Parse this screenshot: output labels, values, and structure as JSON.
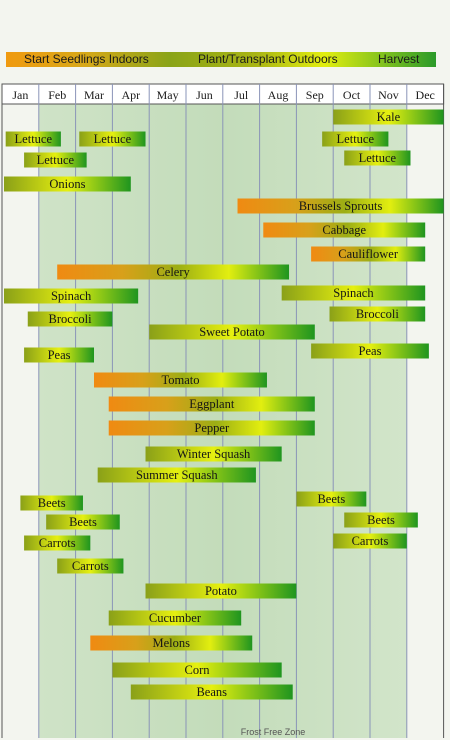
{
  "legend": {
    "start": "Start Seedlings Indoors",
    "plant": "Plant/Transplant Outdoors",
    "harvest": "Harvest"
  },
  "footer": "Frost Free Zone",
  "chart_data": {
    "type": "gantt",
    "months": [
      "Jan",
      "Feb",
      "Mar",
      "Apr",
      "May",
      "Jun",
      "Jul",
      "Aug",
      "Sep",
      "Oct",
      "Nov",
      "Dec"
    ],
    "frost_free_zone": [
      1,
      11
    ],
    "bars": [
      {
        "label": "Kale",
        "start": 9.0,
        "end": 12.0,
        "style": "plant-harvest"
      },
      {
        "label": "Lettuce",
        "start": 0.1,
        "end": 1.6,
        "style": "plant-harvest"
      },
      {
        "label": "Lettuce",
        "start": 2.1,
        "end": 3.9,
        "style": "plant-harvest"
      },
      {
        "label": "Lettuce",
        "start": 8.7,
        "end": 10.5,
        "style": "plant-harvest"
      },
      {
        "label": "Lettuce",
        "start": 0.6,
        "end": 2.3,
        "style": "plant-harvest"
      },
      {
        "label": "Lettuce",
        "start": 9.3,
        "end": 11.1,
        "style": "plant-harvest"
      },
      {
        "label": "Onions",
        "start": -0.2,
        "end": 3.5,
        "style": "plant-harvest"
      },
      {
        "label": "Brussels Sprouts",
        "start": 6.4,
        "end": 12.0,
        "style": "seed-harvest"
      },
      {
        "label": "Cabbage",
        "start": 7.1,
        "end": 11.5,
        "style": "seed-harvest"
      },
      {
        "label": "Cauliflower",
        "start": 8.4,
        "end": 11.5,
        "style": "seed-harvest"
      },
      {
        "label": "Celery",
        "start": 1.5,
        "end": 7.8,
        "style": "seed-harvest"
      },
      {
        "label": "Spinach",
        "start": -0.2,
        "end": 3.7,
        "style": "plant-harvest"
      },
      {
        "label": "Spinach",
        "start": 7.6,
        "end": 11.5,
        "style": "plant-harvest"
      },
      {
        "label": "Broccoli",
        "start": 0.7,
        "end": 3.0,
        "style": "plant-harvest"
      },
      {
        "label": "Broccoli",
        "start": 8.9,
        "end": 11.5,
        "style": "plant-harvest"
      },
      {
        "label": "Sweet Potato",
        "start": 4.0,
        "end": 8.5,
        "style": "plant-harvest"
      },
      {
        "label": "Peas",
        "start": 0.6,
        "end": 2.5,
        "style": "plant-harvest"
      },
      {
        "label": "Peas",
        "start": 8.4,
        "end": 11.6,
        "style": "plant-harvest"
      },
      {
        "label": "Tomato",
        "start": 2.5,
        "end": 7.2,
        "style": "seed-harvest"
      },
      {
        "label": "Eggplant",
        "start": 2.9,
        "end": 8.5,
        "style": "seed-harvest"
      },
      {
        "label": "Pepper",
        "start": 2.9,
        "end": 8.5,
        "style": "seed-harvest"
      },
      {
        "label": "Winter Squash",
        "start": 3.9,
        "end": 7.6,
        "style": "plant-harvest"
      },
      {
        "label": "Summer Squash",
        "start": 2.6,
        "end": 6.9,
        "style": "plant-harvest"
      },
      {
        "label": "Beets",
        "start": 0.5,
        "end": 2.2,
        "style": "plant-harvest"
      },
      {
        "label": "Beets",
        "start": 8.0,
        "end": 9.9,
        "style": "plant-harvest"
      },
      {
        "label": "Beets",
        "start": 1.2,
        "end": 3.2,
        "style": "plant-harvest"
      },
      {
        "label": "Beets",
        "start": 9.3,
        "end": 11.3,
        "style": "plant-harvest"
      },
      {
        "label": "Carrots",
        "start": 0.6,
        "end": 2.4,
        "style": "plant-harvest"
      },
      {
        "label": "Carrots",
        "start": 9.0,
        "end": 11.0,
        "style": "plant-harvest"
      },
      {
        "label": "Carrots",
        "start": 1.5,
        "end": 3.3,
        "style": "plant-harvest"
      },
      {
        "label": "Potato",
        "start": 3.9,
        "end": 8.0,
        "style": "plant-harvest"
      },
      {
        "label": "Cucumber",
        "start": 2.9,
        "end": 6.5,
        "style": "plant-harvest"
      },
      {
        "label": "Melons",
        "start": 2.4,
        "end": 6.8,
        "style": "seed-harvest"
      },
      {
        "label": "Corn",
        "start": 3.0,
        "end": 7.6,
        "style": "plant-harvest"
      },
      {
        "label": "Beans",
        "start": 3.5,
        "end": 7.9,
        "style": "plant-harvest"
      }
    ]
  }
}
